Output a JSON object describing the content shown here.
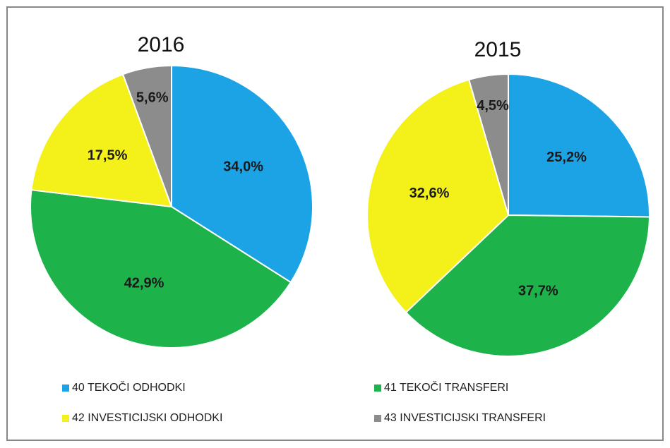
{
  "legend": {
    "items": [
      "40 TEKOČI ODHODKI",
      "41 TEKOČI TRANSFERI",
      "42 INVESTICIJSKI ODHODKI",
      "43 INVESTICIJSKI TRANSFERI"
    ],
    "colors": [
      "#1ca3e6",
      "#1db34a",
      "#f4f01a",
      "#8c8c8c"
    ]
  },
  "chart_data": [
    {
      "type": "pie",
      "title": "2016",
      "values": [
        34.0,
        42.9,
        17.5,
        5.6
      ],
      "value_labels": [
        "34,0%",
        "42,9%",
        "17,5%",
        "5,6%"
      ]
    },
    {
      "type": "pie",
      "title": "2015",
      "values": [
        25.2,
        37.7,
        32.6,
        4.5
      ],
      "value_labels": [
        "25,2%",
        "37,7%",
        "32,6%",
        "4,5%"
      ]
    }
  ]
}
